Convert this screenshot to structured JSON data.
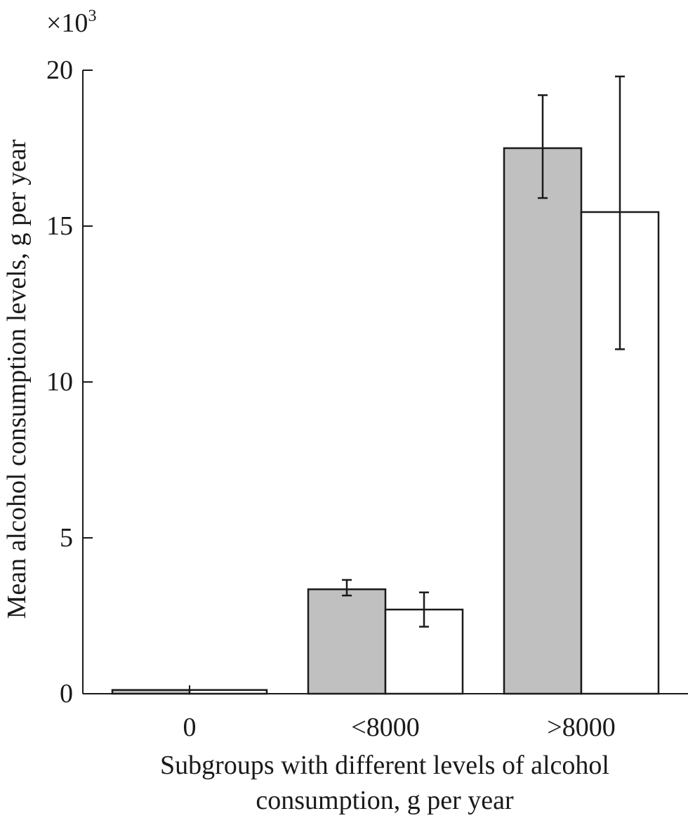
{
  "chart_data": {
    "type": "bar",
    "title": "",
    "multiplier_label": "×10",
    "multiplier_exponent": "3",
    "ylabel": "Mean alcohol consumption levels, g per year",
    "xlabel_lines": [
      "Subgroups with different levels of alcohol",
      "consumption, g per year"
    ],
    "categories": [
      "0",
      "<8000",
      ">8000"
    ],
    "ylim": [
      0,
      20
    ],
    "yticks": [
      0,
      5,
      10,
      15,
      20
    ],
    "ytick_labels": [
      "0",
      "5",
      "10",
      "15",
      "20"
    ],
    "grid": false,
    "legend": "none",
    "series": [
      {
        "color": "#c0c0c0",
        "values": [
          0.12,
          3.35,
          17.5
        ],
        "error_low": [
          null,
          3.15,
          15.9
        ],
        "error_high": [
          null,
          3.65,
          19.2
        ]
      },
      {
        "color": "#ffffff",
        "values": [
          0.12,
          2.7,
          15.45
        ],
        "error_low": [
          null,
          2.15,
          11.05
        ],
        "error_high": [
          null,
          3.25,
          19.8
        ]
      }
    ]
  }
}
